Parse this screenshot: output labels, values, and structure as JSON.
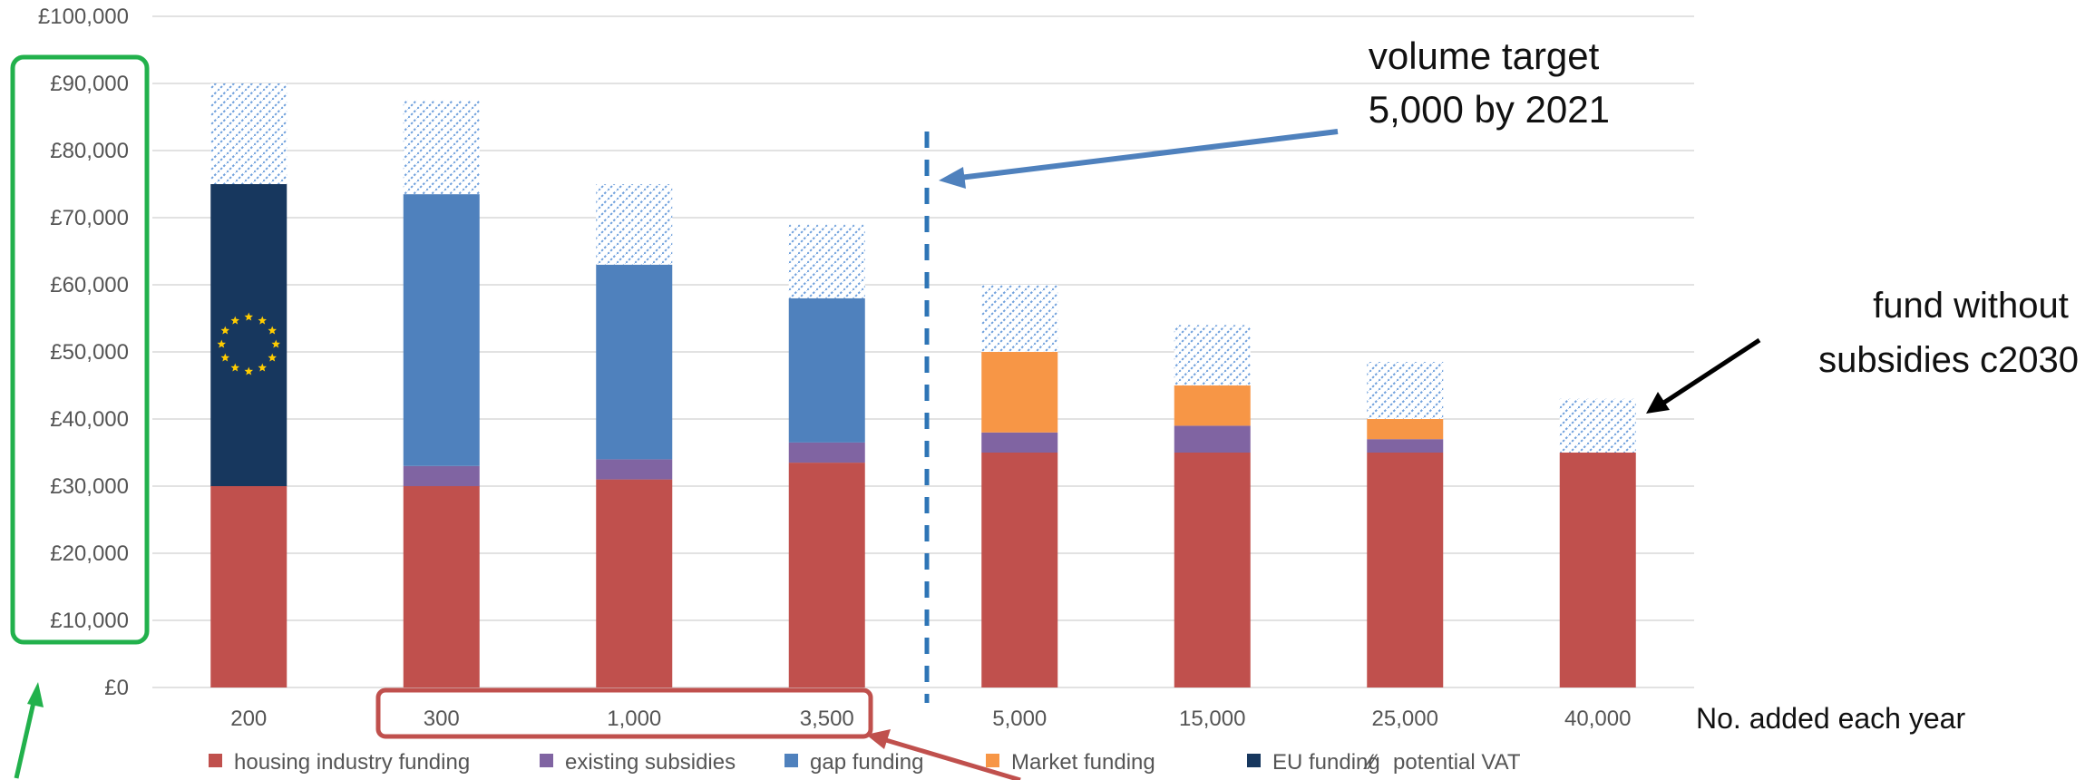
{
  "chart_data": {
    "type": "bar",
    "stacked": true,
    "categories": [
      "200",
      "300",
      "1,000",
      "3,500",
      "5,000",
      "15,000",
      "25,000",
      "40,000"
    ],
    "series": [
      {
        "name": "housing industry funding",
        "color": "#C0504D",
        "values": [
          30000,
          30000,
          31000,
          33500,
          35000,
          35000,
          35000,
          35000
        ]
      },
      {
        "name": "existing subsidies",
        "color": "#8064A2",
        "values": [
          0,
          3000,
          3000,
          3000,
          3000,
          4000,
          2000,
          0
        ]
      },
      {
        "name": "gap funding",
        "color": "#4F81BD",
        "values": [
          0,
          40500,
          29000,
          21500,
          0,
          0,
          0,
          0
        ]
      },
      {
        "name": "Market funding",
        "color": "#F79646",
        "values": [
          0,
          0,
          0,
          0,
          12000,
          6000,
          3000,
          0
        ]
      },
      {
        "name": "EU funding",
        "color": "#17375E",
        "values": [
          45000,
          0,
          0,
          0,
          0,
          0,
          0,
          0
        ]
      },
      {
        "name": "potential VAT",
        "color": "#8EB4E3",
        "pattern": "hatched-dots",
        "values": [
          15000,
          14000,
          12000,
          11000,
          10000,
          9000,
          8500,
          8000
        ]
      }
    ],
    "y_ticks": [
      "£0",
      "£10,000",
      "£20,000",
      "£30,000",
      "£40,000",
      "£50,000",
      "£60,000",
      "£70,000",
      "£80,000",
      "£90,000",
      "£100,000"
    ],
    "ylim": [
      0,
      100000
    ],
    "xlabel": "No. added each year",
    "ylabel": "",
    "grid": true,
    "legend": "bottom",
    "annotations": {
      "volume_target": [
        "volume target",
        "5,000 by 2021"
      ],
      "fund_without": [
        "fund without",
        "subsidies c2030"
      ]
    },
    "highlight_colors": {
      "y_axis_box": "#22B14C",
      "category_box": "#C0504D",
      "target_arrow": "#4F81BD",
      "divider": "#2E75B6"
    }
  }
}
